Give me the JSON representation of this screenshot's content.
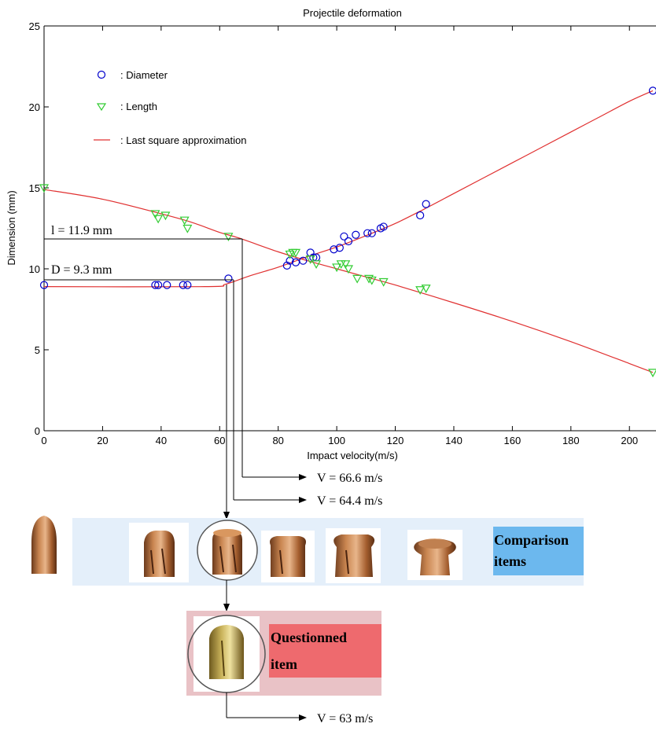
{
  "chart_data": {
    "type": "scatter",
    "title": "Projectile  deformation",
    "xlabel": "Impact velocity(m/s)",
    "ylabel": "Dimension (mm)",
    "xlim": [
      0,
      208
    ],
    "ylim": [
      0,
      25
    ],
    "x_ticks": [
      0,
      20,
      40,
      60,
      80,
      100,
      120,
      140,
      160,
      180,
      200
    ],
    "y_ticks": [
      0,
      5,
      10,
      15,
      20,
      25
    ],
    "grid": false,
    "legend_position": "top-left",
    "legend": [
      {
        "marker": "circle",
        "label": ": Diameter",
        "color": "#0000cc"
      },
      {
        "marker": "triangle-down",
        "label": ": Length",
        "color": "#33cc33"
      },
      {
        "marker": "line",
        "label": ": Last square approximation",
        "color": "#e03030"
      }
    ],
    "series": [
      {
        "name": ": Diameter",
        "color": "#0000cc",
        "marker": "circle",
        "points": [
          [
            0,
            9.0
          ],
          [
            38,
            9.0
          ],
          [
            39,
            9.0
          ],
          [
            42,
            9.0
          ],
          [
            47.5,
            9.0
          ],
          [
            49,
            9.0
          ],
          [
            63,
            9.4
          ],
          [
            83,
            10.2
          ],
          [
            84,
            10.5
          ],
          [
            86,
            10.4
          ],
          [
            88.5,
            10.5
          ],
          [
            91,
            11.0
          ],
          [
            92,
            10.7
          ],
          [
            93,
            10.7
          ],
          [
            99,
            11.2
          ],
          [
            101,
            11.3
          ],
          [
            102.5,
            12.0
          ],
          [
            104,
            11.7
          ],
          [
            106.5,
            12.1
          ],
          [
            110.5,
            12.2
          ],
          [
            112,
            12.2
          ],
          [
            115,
            12.5
          ],
          [
            116,
            12.6
          ],
          [
            128.5,
            13.3
          ],
          [
            130.5,
            14.0
          ],
          [
            208,
            21.0
          ]
        ]
      },
      {
        "name": ": Length",
        "color": "#33cc33",
        "marker": "triangle-down",
        "points": [
          [
            0,
            15.0
          ],
          [
            38,
            13.4
          ],
          [
            39,
            13.1
          ],
          [
            41.5,
            13.3
          ],
          [
            48,
            13.0
          ],
          [
            49,
            12.5
          ],
          [
            63,
            12.0
          ],
          [
            84,
            10.9
          ],
          [
            85,
            11.0
          ],
          [
            86,
            11.0
          ],
          [
            91,
            10.6
          ],
          [
            93,
            10.3
          ],
          [
            100,
            10.1
          ],
          [
            101.5,
            10.3
          ],
          [
            103,
            10.3
          ],
          [
            104,
            10.0
          ],
          [
            107,
            9.4
          ],
          [
            111,
            9.4
          ],
          [
            112,
            9.3
          ],
          [
            116,
            9.2
          ],
          [
            128.5,
            8.7
          ],
          [
            130.5,
            8.8
          ],
          [
            208,
            3.6
          ]
        ]
      },
      {
        "name": ": Last square approximation",
        "color": "#e03030",
        "type": "line",
        "fits": [
          [
            [
              0,
              8.9
            ],
            [
              55,
              8.9
            ],
            [
              62,
              9.05
            ],
            [
              70,
              9.55
            ],
            [
              80,
              10.1
            ],
            [
              90,
              10.75
            ],
            [
              100,
              11.35
            ],
            [
              110,
              12.05
            ],
            [
              120,
              12.8
            ],
            [
              130,
              13.7
            ],
            [
              140,
              14.65
            ],
            [
              150,
              15.6
            ],
            [
              160,
              16.55
            ],
            [
              170,
              17.5
            ],
            [
              180,
              18.45
            ],
            [
              190,
              19.4
            ],
            [
              200,
              20.35
            ],
            [
              208,
              21.0
            ]
          ],
          [
            [
              0,
              14.9
            ],
            [
              20,
              14.3
            ],
            [
              40,
              13.4
            ],
            [
              50,
              12.9
            ],
            [
              60,
              12.25
            ],
            [
              66.6,
              11.9
            ],
            [
              80,
              11.05
            ],
            [
              90,
              10.5
            ],
            [
              100,
              10.0
            ],
            [
              110,
              9.5
            ],
            [
              120,
              9.0
            ],
            [
              140,
              7.9
            ],
            [
              160,
              6.75
            ],
            [
              180,
              5.5
            ],
            [
              200,
              4.15
            ],
            [
              208,
              3.6
            ]
          ]
        ]
      }
    ],
    "annotations": [
      {
        "text": "l = 11.9 mm",
        "value": 11.9
      },
      {
        "text": "D = 9.3 mm",
        "value": 9.3
      },
      {
        "text": "V = 66.6 m/s",
        "value": 66.6
      },
      {
        "text": "V = 64.4 m/s",
        "value": 64.4
      },
      {
        "text": "V = 63 m/s",
        "value": 63
      }
    ]
  },
  "comparison_label": [
    "Comparison",
    "items"
  ],
  "questioned_label": [
    "Questionned",
    "item"
  ],
  "colors": {
    "comparison_band": "#e4effa",
    "comparison_box": "#6cb8ee",
    "questioned_band": "#e9c2c6",
    "questioned_box": "#ee6a6e",
    "copper": "#b5703a",
    "brass": "#b8a246"
  }
}
